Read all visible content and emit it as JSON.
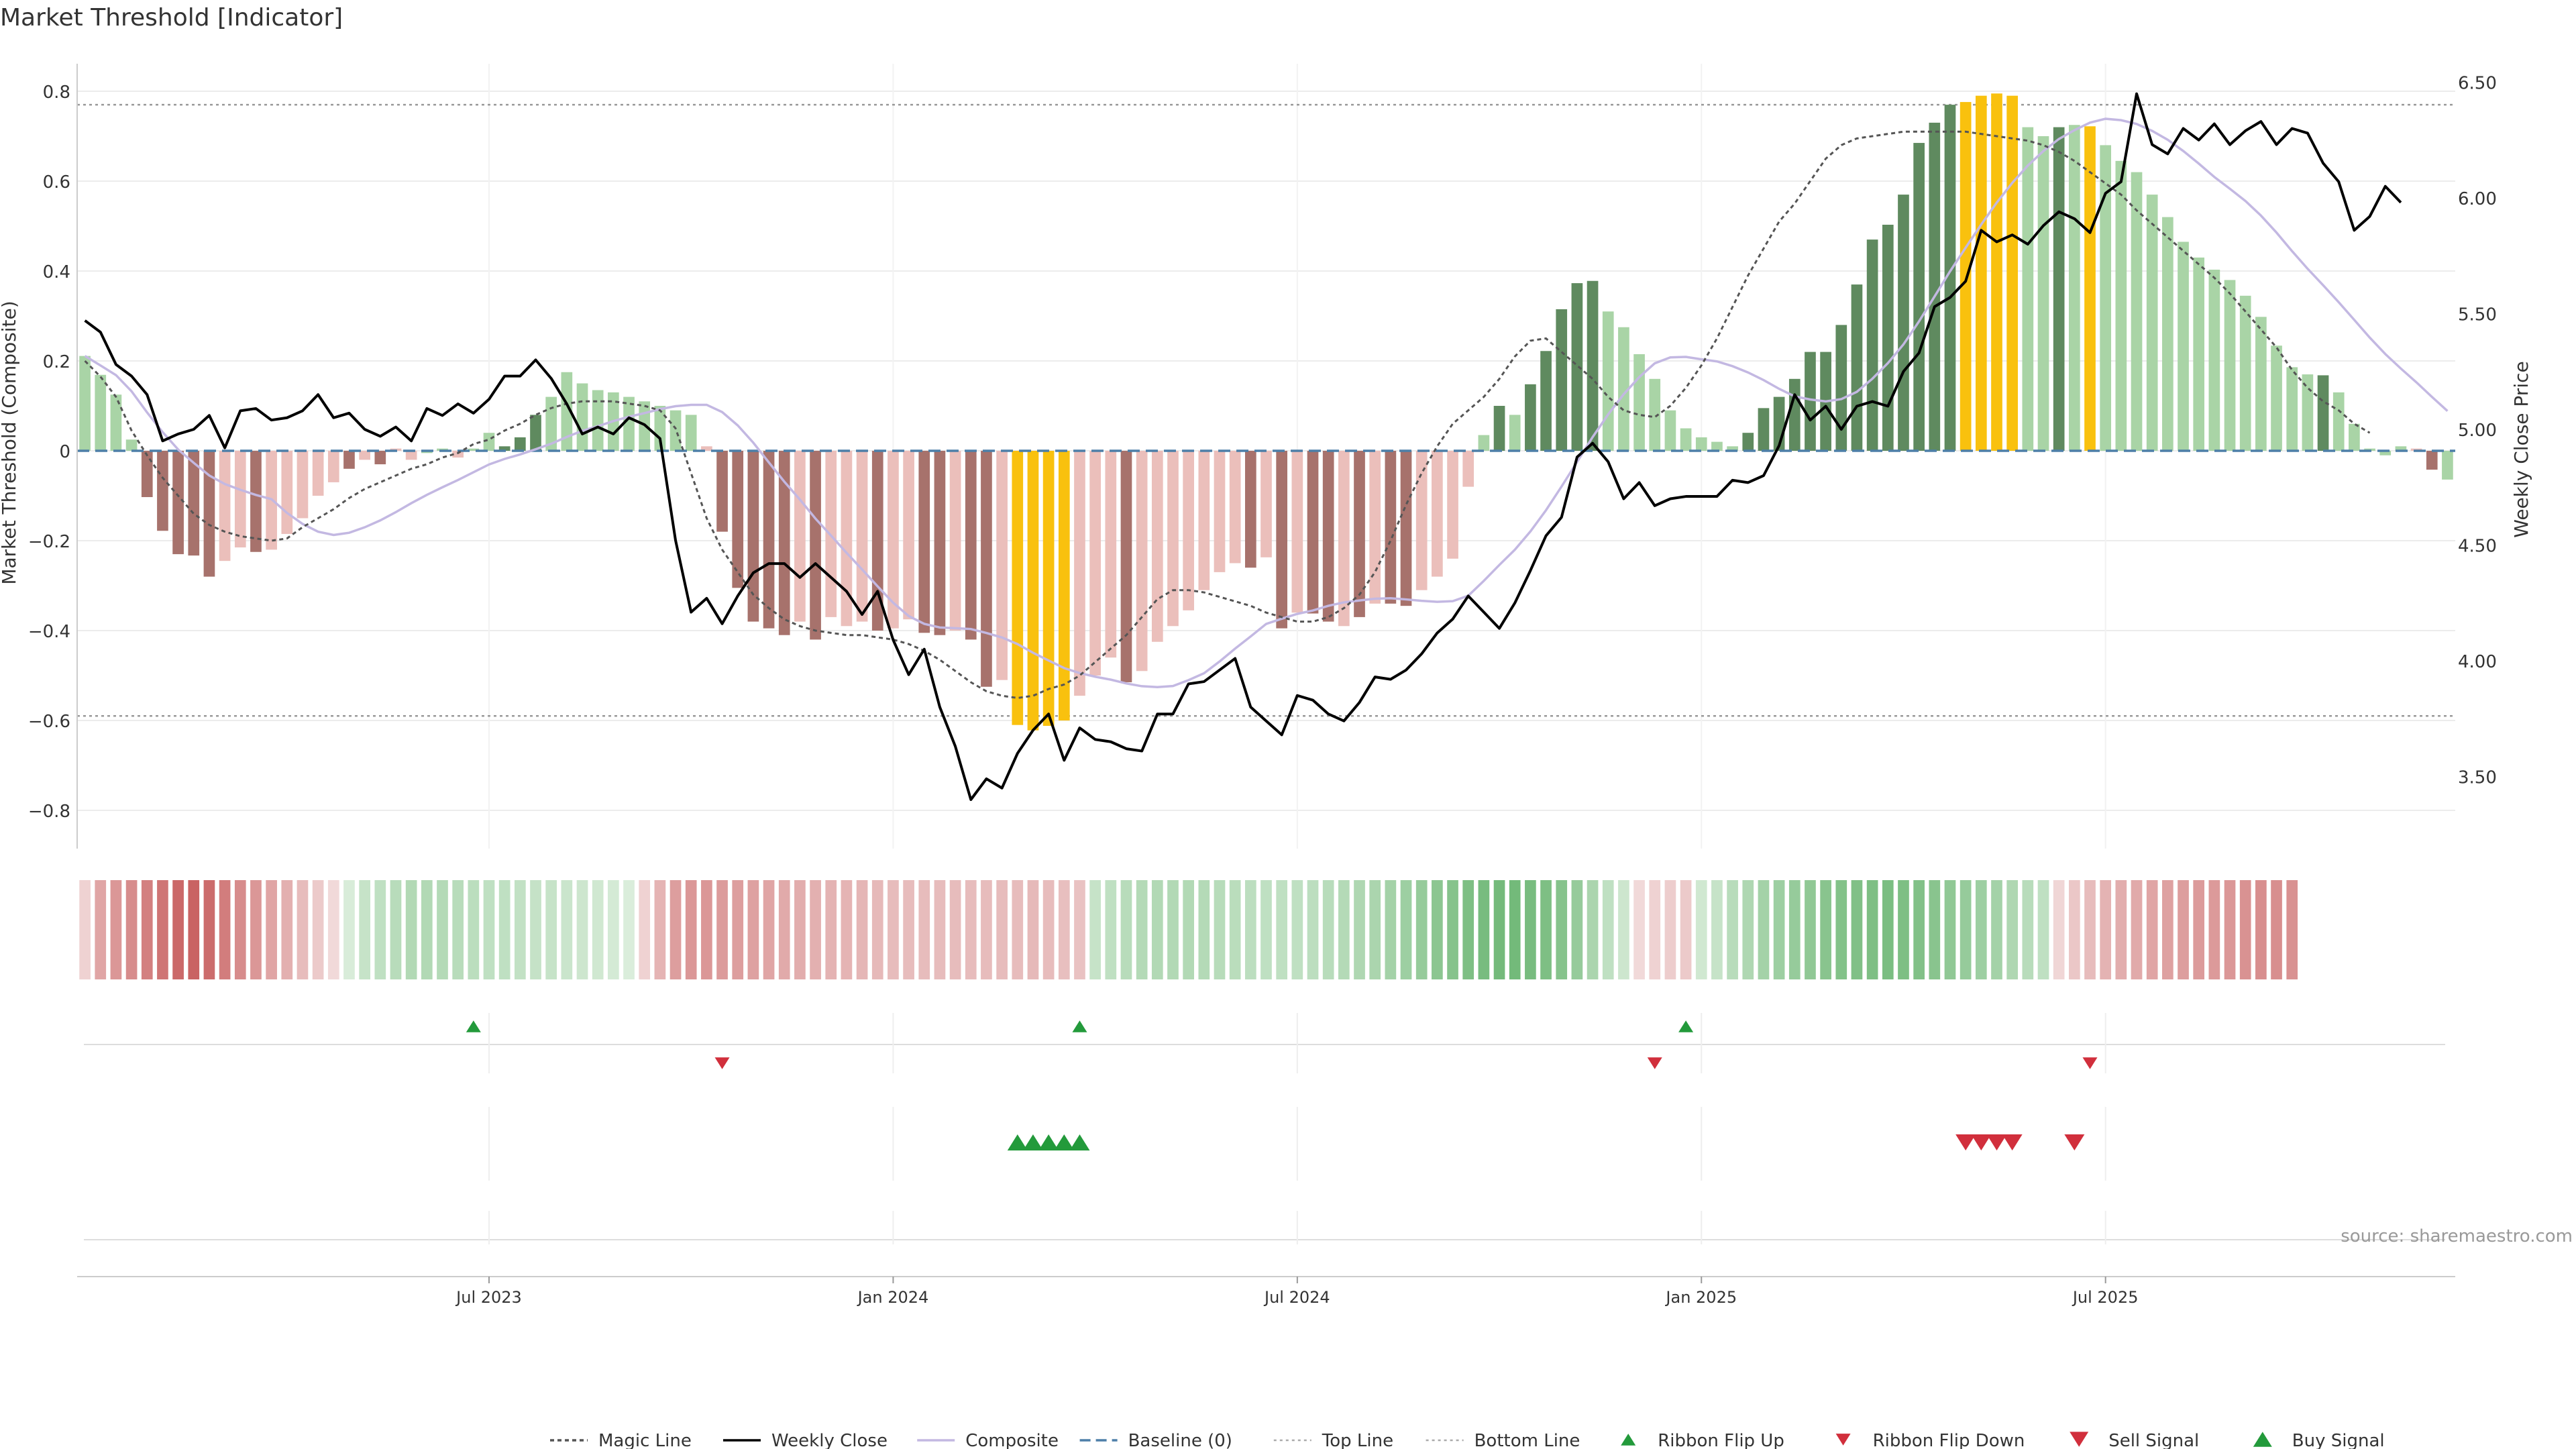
{
  "chart_data": {
    "type": "bar",
    "title": "Market Threshold [Indicator]",
    "ylabel_left": "Market Threshold (Composite)",
    "ylabel_right": "Weekly Close Price",
    "ylim_left": [
      -0.88,
      0.84
    ],
    "ylim_right": [
      3.22,
      6.56
    ],
    "yticks_left": [
      0.8,
      0.6,
      0.4,
      0.2,
      0,
      -0.2,
      -0.4,
      -0.6,
      -0.8
    ],
    "ytick_labels_left": [
      "0.8",
      "0.6",
      "0.4",
      "0.2",
      "0",
      "−0.2",
      "−0.4",
      "−0.6",
      "−0.8"
    ],
    "yticks_right": [
      6.5,
      6.0,
      5.5,
      5.0,
      4.5,
      4.0,
      3.5
    ],
    "ytick_labels_right": [
      "6.50",
      "6.00",
      "5.50",
      "5.00",
      "4.50",
      "4.00",
      "3.50"
    ],
    "x_ticks": [
      {
        "w": 26,
        "label": "Jul 2023"
      },
      {
        "w": 52,
        "label": "Jan 2024"
      },
      {
        "w": 78,
        "label": "Jul 2024"
      },
      {
        "w": 104,
        "label": "Jan 2025"
      },
      {
        "w": 130,
        "label": "Jul 2025"
      }
    ],
    "top_line": 0.77,
    "bottom_line": -0.59,
    "baseline": 0,
    "composite": [
      0.211,
      0.169,
      0.125,
      0.025,
      -0.103,
      -0.178,
      -0.23,
      -0.233,
      -0.28,
      -0.245,
      -0.215,
      -0.225,
      -0.22,
      -0.185,
      -0.15,
      -0.1,
      -0.07,
      -0.04,
      -0.02,
      -0.03,
      0.005,
      -0.02,
      -0.005,
      0.005,
      -0.015,
      0.005,
      0.04,
      0.01,
      0.03,
      0.08,
      0.12,
      0.175,
      0.15,
      0.135,
      0.13,
      0.12,
      0.11,
      0.1,
      0.09,
      0.08,
      0.01,
      -0.18,
      -0.305,
      -0.38,
      -0.395,
      -0.41,
      -0.38,
      -0.42,
      -0.37,
      -0.39,
      -0.38,
      -0.4,
      -0.395,
      -0.375,
      -0.405,
      -0.41,
      -0.4,
      -0.42,
      -0.525,
      -0.51,
      -0.61,
      -0.622,
      -0.612,
      -0.6,
      -0.545,
      -0.5,
      -0.46,
      -0.515,
      -0.49,
      -0.425,
      -0.39,
      -0.355,
      -0.31,
      -0.27,
      -0.25,
      -0.26,
      -0.237,
      -0.395,
      -0.36,
      -0.362,
      -0.38,
      -0.39,
      -0.37,
      -0.34,
      -0.34,
      -0.345,
      -0.31,
      -0.28,
      -0.24,
      -0.08,
      0.035,
      0.1,
      0.08,
      0.148,
      0.222,
      0.315,
      0.373,
      0.378,
      0.31,
      0.275,
      0.215,
      0.16,
      0.09,
      0.05,
      0.03,
      0.02,
      0.01,
      0.04,
      0.095,
      0.12,
      0.16,
      0.22,
      0.22,
      0.28,
      0.37,
      0.47,
      0.503,
      0.57,
      0.685,
      0.73,
      0.77,
      0.776,
      0.79,
      0.795,
      0.79,
      0.72,
      0.7,
      0.72,
      0.725,
      0.722,
      0.68,
      0.645,
      0.62,
      0.57,
      0.52,
      0.465,
      0.43,
      0.403,
      0.38,
      0.345,
      0.298,
      0.234,
      0.186,
      0.17,
      0.168,
      0.13,
      0.06,
      0.005,
      -0.01,
      0.01,
      0.005,
      -0.042,
      -0.064
    ],
    "bar_category": [
      "LG",
      "LG",
      "LG",
      "LG",
      "DR",
      "DR",
      "DR",
      "DR",
      "DR",
      "LR",
      "LR",
      "DR",
      "LR",
      "LR",
      "LR",
      "LR",
      "LR",
      "DR",
      "LR",
      "DR",
      "LR",
      "LR",
      "LG",
      "LG",
      "LR",
      "LG",
      "LG",
      "DG",
      "DG",
      "DG",
      "LG",
      "LG",
      "LG",
      "LG",
      "LG",
      "LG",
      "LG",
      "LG",
      "LG",
      "LG",
      "LR",
      "DR",
      "DR",
      "DR",
      "DR",
      "DR",
      "LR",
      "DR",
      "LR",
      "LR",
      "LR",
      "DR",
      "LR",
      "LR",
      "DR",
      "DR",
      "LR",
      "DR",
      "DR",
      "LR",
      "Y",
      "Y",
      "Y",
      "Y",
      "LR",
      "LR",
      "LR",
      "DR",
      "LR",
      "LR",
      "LR",
      "LR",
      "LR",
      "LR",
      "LR",
      "DR",
      "LR",
      "DR",
      "LR",
      "DR",
      "DR",
      "LR",
      "DR",
      "LR",
      "DR",
      "DR",
      "LR",
      "LR",
      "LR",
      "LR",
      "LG",
      "DG",
      "LG",
      "DG",
      "DG",
      "DG",
      "DG",
      "DG",
      "LG",
      "LG",
      "LG",
      "LG",
      "LG",
      "LG",
      "LG",
      "LG",
      "LG",
      "DG",
      "DG",
      "DG",
      "DG",
      "DG",
      "DG",
      "DG",
      "DG",
      "DG",
      "DG",
      "DG",
      "DG",
      "DG",
      "DG",
      "Y",
      "Y",
      "Y",
      "Y",
      "LG",
      "LG",
      "DG",
      "LG",
      "Y",
      "LG",
      "LG",
      "LG",
      "LG",
      "LG",
      "LG",
      "LG",
      "LG",
      "LG",
      "LG",
      "LG",
      "LG",
      "LG",
      "LG",
      "DG",
      "LG",
      "LG",
      "LG",
      "LG",
      "LG",
      "LR",
      "DR"
    ],
    "weekly_close": [
      5.47,
      5.42,
      5.28,
      5.23,
      5.15,
      4.95,
      4.98,
      5.0,
      5.06,
      4.92,
      5.08,
      5.09,
      5.04,
      5.05,
      5.08,
      5.15,
      5.05,
      5.07,
      5.0,
      4.97,
      5.01,
      4.95,
      5.09,
      5.06,
      5.11,
      5.07,
      5.13,
      5.23,
      5.23,
      5.3,
      5.22,
      5.11,
      4.98,
      5.01,
      4.98,
      5.05,
      5.02,
      4.96,
      4.52,
      4.21,
      4.27,
      4.16,
      4.28,
      4.38,
      4.42,
      4.42,
      4.36,
      4.42,
      4.36,
      4.3,
      4.2,
      4.3,
      4.09,
      3.94,
      4.05,
      3.8,
      3.63,
      3.4,
      3.49,
      3.45,
      3.6,
      3.7,
      3.77,
      3.57,
      3.71,
      3.66,
      3.65,
      3.62,
      3.61,
      3.77,
      3.77,
      3.9,
      3.91,
      3.96,
      4.01,
      3.8,
      3.74,
      3.68,
      3.85,
      3.83,
      3.77,
      3.74,
      3.82,
      3.93,
      3.92,
      3.96,
      4.03,
      4.12,
      4.18,
      4.28,
      4.21,
      4.14,
      4.25,
      4.39,
      4.54,
      4.62,
      4.88,
      4.94,
      4.86,
      4.7,
      4.77,
      4.67,
      4.7,
      4.71,
      4.71,
      4.71,
      4.78,
      4.77,
      4.8,
      4.93,
      5.15,
      5.04,
      5.1,
      5.0,
      5.1,
      5.12,
      5.1,
      5.25,
      5.33,
      5.53,
      5.57,
      5.64,
      5.86,
      5.81,
      5.84,
      5.8,
      5.88,
      5.94,
      5.91,
      5.85,
      6.02,
      6.07,
      6.45,
      6.23,
      6.19,
      6.3,
      6.25,
      6.32,
      6.23,
      6.29,
      6.33,
      6.23,
      6.3,
      6.28,
      6.15,
      6.07,
      5.86,
      5.92,
      6.05,
      5.98
    ],
    "magic_line": [
      0.2,
      0.165,
      0.12,
      0.045,
      -0.01,
      -0.06,
      -0.1,
      -0.14,
      -0.165,
      -0.18,
      -0.19,
      -0.195,
      -0.2,
      -0.195,
      -0.17,
      -0.15,
      -0.13,
      -0.105,
      -0.085,
      -0.07,
      -0.055,
      -0.04,
      -0.03,
      -0.015,
      -0.005,
      0.015,
      0.025,
      0.045,
      0.06,
      0.08,
      0.095,
      0.105,
      0.11,
      0.11,
      0.11,
      0.105,
      0.1,
      0.09,
      0.05,
      -0.05,
      -0.15,
      -0.22,
      -0.27,
      -0.32,
      -0.35,
      -0.375,
      -0.39,
      -0.4,
      -0.405,
      -0.41,
      -0.41,
      -0.415,
      -0.42,
      -0.43,
      -0.445,
      -0.465,
      -0.49,
      -0.515,
      -0.535,
      -0.545,
      -0.55,
      -0.545,
      -0.53,
      -0.52,
      -0.5,
      -0.47,
      -0.44,
      -0.41,
      -0.37,
      -0.33,
      -0.31,
      -0.31,
      -0.315,
      -0.325,
      -0.335,
      -0.345,
      -0.36,
      -0.37,
      -0.38,
      -0.38,
      -0.37,
      -0.35,
      -0.32,
      -0.27,
      -0.2,
      -0.12,
      -0.05,
      0.01,
      0.06,
      0.09,
      0.12,
      0.16,
      0.21,
      0.245,
      0.25,
      0.22,
      0.19,
      0.16,
      0.12,
      0.09,
      0.08,
      0.075,
      0.1,
      0.14,
      0.19,
      0.25,
      0.32,
      0.39,
      0.45,
      0.51,
      0.55,
      0.6,
      0.65,
      0.68,
      0.695,
      0.7,
      0.705,
      0.71,
      0.71,
      0.71,
      0.71,
      0.71,
      0.705,
      0.7,
      0.695,
      0.69,
      0.68,
      0.665,
      0.645,
      0.62,
      0.595,
      0.57,
      0.535,
      0.505,
      0.475,
      0.445,
      0.415,
      0.385,
      0.35,
      0.31,
      0.27,
      0.23,
      0.18,
      0.14,
      0.11,
      0.09,
      0.06,
      0.04
    ],
    "ribbon_strength": [
      -0.15,
      -0.45,
      -0.55,
      -0.62,
      -0.7,
      -0.78,
      -0.86,
      -0.9,
      -0.84,
      -0.72,
      -0.62,
      -0.55,
      -0.45,
      -0.38,
      -0.3,
      -0.2,
      -0.1,
      0.12,
      0.25,
      0.3,
      0.35,
      0.4,
      0.4,
      0.38,
      0.35,
      0.33,
      0.3,
      0.3,
      0.28,
      0.26,
      0.25,
      0.22,
      0.2,
      0.18,
      0.15,
      0.1,
      -0.15,
      -0.35,
      -0.5,
      -0.55,
      -0.55,
      -0.52,
      -0.5,
      -0.48,
      -0.45,
      -0.42,
      -0.4,
      -0.38,
      -0.36,
      -0.35,
      -0.34,
      -0.32,
      -0.3,
      -0.3,
      -0.3,
      -0.3,
      -0.3,
      -0.3,
      -0.3,
      -0.3,
      -0.3,
      -0.32,
      -0.3,
      -0.28,
      -0.26,
      0.25,
      0.3,
      0.35,
      0.38,
      0.4,
      0.4,
      0.4,
      0.38,
      0.36,
      0.34,
      0.32,
      0.3,
      0.3,
      0.3,
      0.32,
      0.35,
      0.38,
      0.42,
      0.45,
      0.5,
      0.55,
      0.6,
      0.68,
      0.72,
      0.78,
      0.82,
      0.85,
      0.86,
      0.82,
      0.78,
      0.72,
      0.6,
      0.45,
      0.3,
      0.2,
      -0.1,
      -0.15,
      -0.18,
      -0.2,
      0.18,
      0.25,
      0.35,
      0.42,
      0.5,
      0.55,
      0.6,
      0.65,
      0.7,
      0.74,
      0.76,
      0.78,
      0.8,
      0.78,
      0.75,
      0.7,
      0.65,
      0.6,
      0.55,
      0.5,
      0.42,
      0.35,
      0.3,
      -0.12,
      -0.22,
      -0.3,
      -0.36,
      -0.4,
      -0.42,
      -0.45,
      -0.48,
      -0.5,
      -0.52,
      -0.53,
      -0.55,
      -0.58,
      -0.6,
      -0.6,
      -0.58
    ],
    "ribbon_flip_up": [
      25,
      64,
      103
    ],
    "ribbon_flip_down": [
      41,
      101,
      129
    ],
    "buy_signal": [
      60,
      61,
      62,
      63,
      64
    ],
    "sell_signal": [
      121,
      122,
      123,
      124,
      128
    ],
    "source": "source: sharemaestro.com",
    "legend": [
      {
        "label": "Magic Line",
        "kind": "dotted",
        "color": "#555555"
      },
      {
        "label": "Weekly Close",
        "kind": "solid",
        "color": "#000000"
      },
      {
        "label": "Composite",
        "kind": "solid",
        "color": "#c3b8e2"
      },
      {
        "label": "Baseline (0)",
        "kind": "dashed",
        "color": "#4d7fa8"
      },
      {
        "label": "Top Line",
        "kind": "dotted-light",
        "color": "#aaaaaa"
      },
      {
        "label": "Bottom Line",
        "kind": "dotted-light",
        "color": "#aaaaaa"
      },
      {
        "label": "Ribbon Flip Up",
        "kind": "tri-up-small",
        "color": "#239a3b"
      },
      {
        "label": "Ribbon Flip Down",
        "kind": "tri-down-small",
        "color": "#d12f3c"
      },
      {
        "label": "Sell Signal",
        "kind": "tri-down",
        "color": "#d12f3c"
      },
      {
        "label": "Buy Signal",
        "kind": "tri-up",
        "color": "#239a3b"
      }
    ],
    "colors": {
      "dark_green": "#5f8a5f",
      "light_green": "#a9d4a6",
      "dark_red": "#a7726c",
      "light_red": "#ebbfbb",
      "yellow": "#f9c10e",
      "weekly_close": "#000000",
      "composite": "#c3b8e2",
      "magic_line": "#555555",
      "baseline": "#4d7fa8",
      "threshold_lines": "#999999",
      "up_marker": "#239a3b",
      "down_marker": "#d12f3c"
    }
  }
}
